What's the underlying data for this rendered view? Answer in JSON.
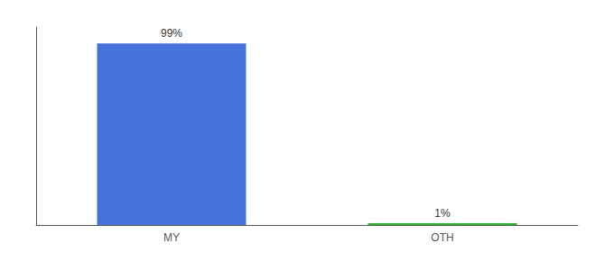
{
  "chart_data": {
    "type": "bar",
    "categories": [
      "MY",
      "OTH"
    ],
    "values": [
      99,
      1
    ],
    "value_labels": [
      "99%",
      "1%"
    ],
    "data_labels": true,
    "colors": [
      "#4472db",
      "#22bb22"
    ],
    "ylim": [
      0,
      108
    ],
    "tick_labels": "x",
    "grid": false
  }
}
